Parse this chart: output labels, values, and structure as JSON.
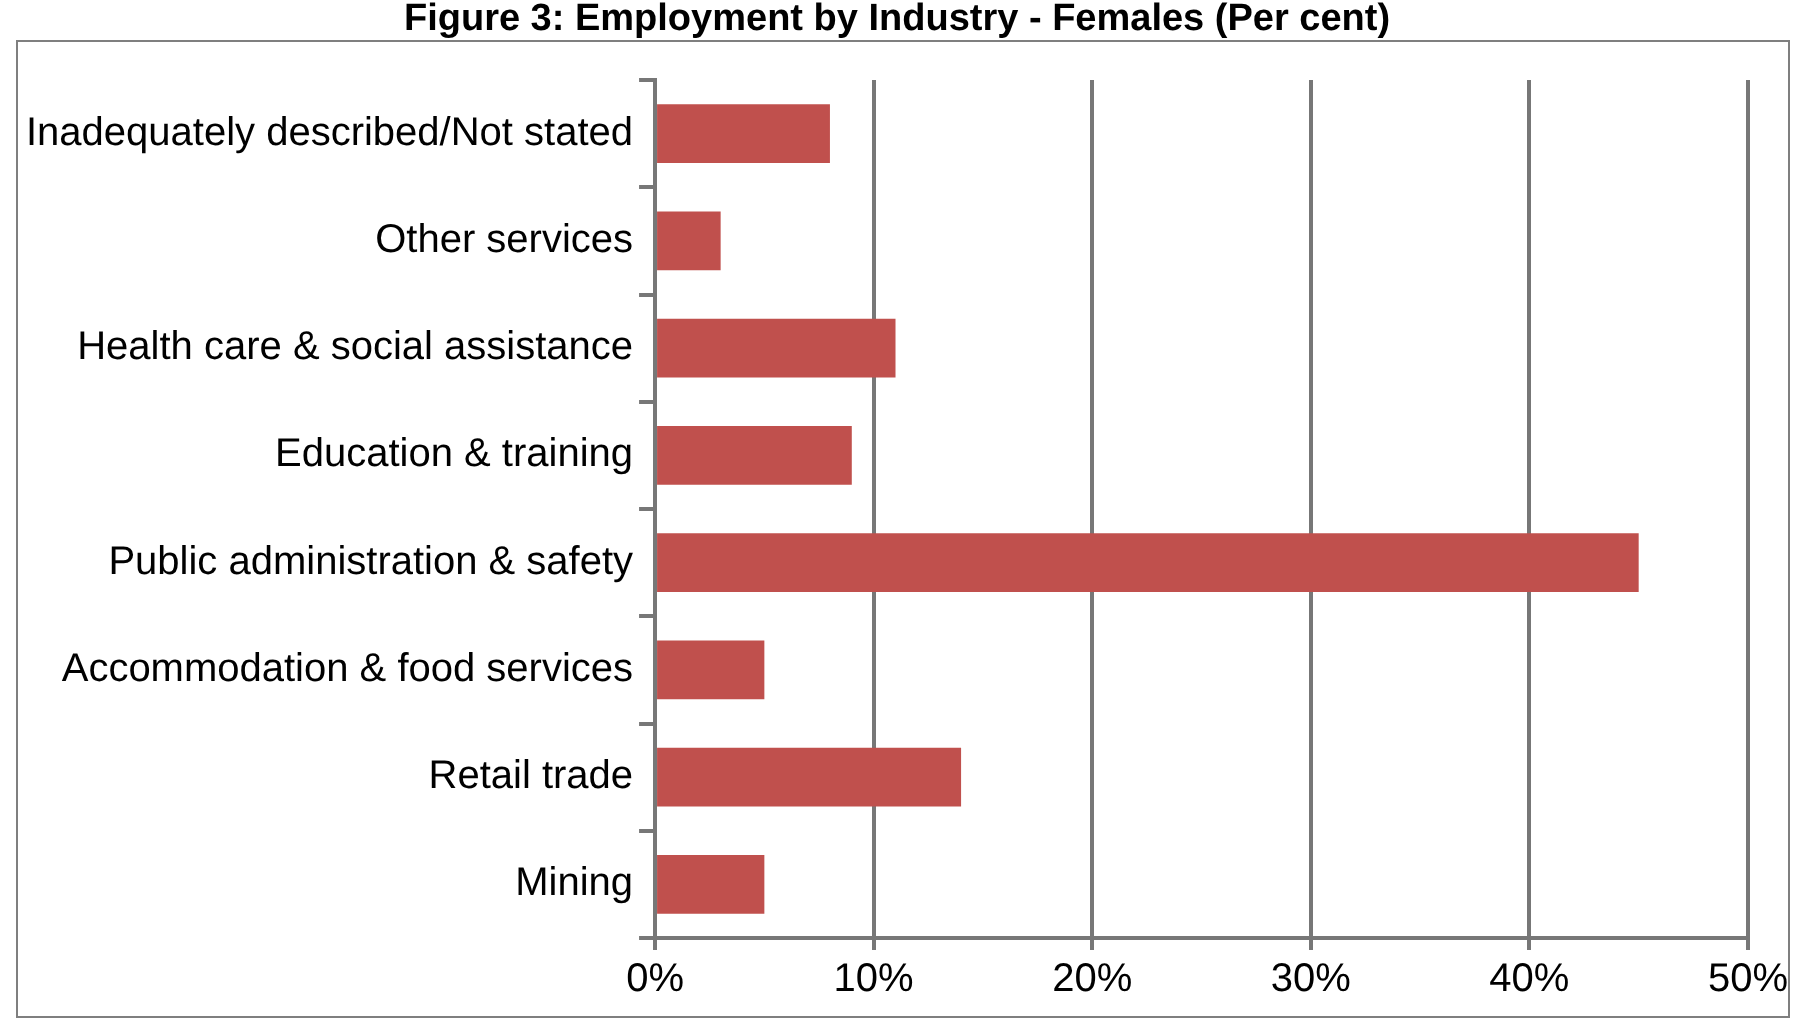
{
  "chart_data": {
    "type": "bar",
    "orientation": "horizontal",
    "title": "Figure 3: Employment by Industry - Females (Per cent)",
    "categories": [
      "Inadequately described/Not stated",
      "Other services",
      "Health care & social assistance",
      "Education & training",
      "Public administration & safety",
      "Accommodation & food services",
      "Retail trade",
      "Mining"
    ],
    "values": [
      8,
      3,
      11,
      9,
      45,
      5,
      14,
      5
    ],
    "color": "#c0504d",
    "xlim": [
      0,
      50
    ],
    "xticks": [
      {
        "value": 0,
        "label": "0%"
      },
      {
        "value": 10,
        "label": "10%"
      },
      {
        "value": 20,
        "label": "20%"
      },
      {
        "value": 30,
        "label": "30%"
      },
      {
        "value": 40,
        "label": "40%"
      },
      {
        "value": 50,
        "label": "50%"
      }
    ],
    "grid": "x",
    "legend": false
  }
}
